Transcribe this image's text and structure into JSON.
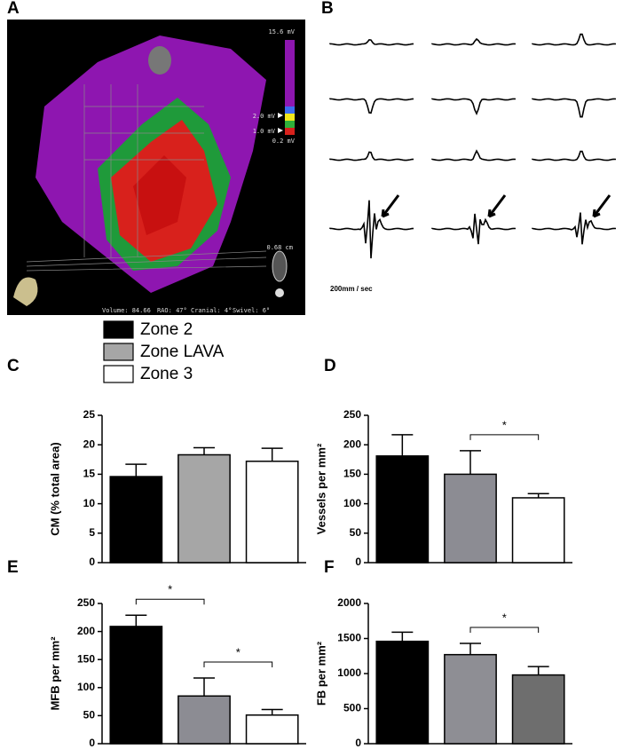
{
  "panels": {
    "a": {
      "label": "A",
      "scale_max": "15.6 mV",
      "scale_high": "2.0 mV",
      "scale_low": "1.0 mV",
      "scale_min": "0.2 mV",
      "distance": "0.68 cm",
      "volume": "Volume: 84.66",
      "rao": "RAO: 47°",
      "cranial": "Cranial: 4°",
      "swivel": "Swivel: 6°"
    },
    "b": {
      "label": "B",
      "speed": "200mm / sec"
    }
  },
  "legend": [
    {
      "name": "Zone 2",
      "color": "#000000"
    },
    {
      "name": "Zone LAVA",
      "color": "#a6a6a6"
    },
    {
      "name": "Zone 3",
      "color": "#ffffff"
    }
  ],
  "chart_data": [
    {
      "type": "bar",
      "panel": "C",
      "ylabel": "CM (% total area)",
      "values": [
        14.6,
        18.3,
        17.2
      ],
      "errors": [
        2.1,
        1.2,
        2.2
      ],
      "colors": [
        "#000000",
        "#a6a6a6",
        "#ffffff"
      ],
      "ylim": [
        0,
        25
      ],
      "yticks": [
        0,
        5,
        10,
        15,
        20,
        25
      ],
      "significance": []
    },
    {
      "type": "bar",
      "panel": "D",
      "ylabel": "Vessels per mm²",
      "values": [
        181,
        150,
        110
      ],
      "errors": [
        36,
        40,
        7
      ],
      "colors": [
        "#000000",
        "#8c8c93",
        "#ffffff"
      ],
      "ylim": [
        0,
        250
      ],
      "yticks": [
        0,
        50,
        100,
        150,
        200,
        250
      ],
      "significance": [
        {
          "between": [
            1,
            2
          ],
          "label": "*"
        }
      ]
    },
    {
      "type": "bar",
      "panel": "E",
      "ylabel": "MFB per mm²",
      "values": [
        209,
        85,
        51
      ],
      "errors": [
        20,
        32,
        10
      ],
      "colors": [
        "#000000",
        "#8c8c93",
        "#ffffff"
      ],
      "ylim": [
        0,
        250
      ],
      "yticks": [
        0,
        50,
        100,
        150,
        200,
        250
      ],
      "significance": [
        {
          "between": [
            0,
            1
          ],
          "label": "*"
        },
        {
          "between": [
            1,
            2
          ],
          "label": "*"
        }
      ]
    },
    {
      "type": "bar",
      "panel": "F",
      "ylabel": "FB per mm²",
      "values": [
        1460,
        1270,
        980
      ],
      "errors": [
        130,
        160,
        120
      ],
      "colors": [
        "#000000",
        "#8e8e94",
        "#6e6e6e"
      ],
      "ylim": [
        0,
        2000
      ],
      "yticks": [
        0,
        500,
        1000,
        1500,
        2000
      ],
      "significance": [
        {
          "between": [
            1,
            2
          ],
          "label": "*"
        }
      ]
    }
  ]
}
